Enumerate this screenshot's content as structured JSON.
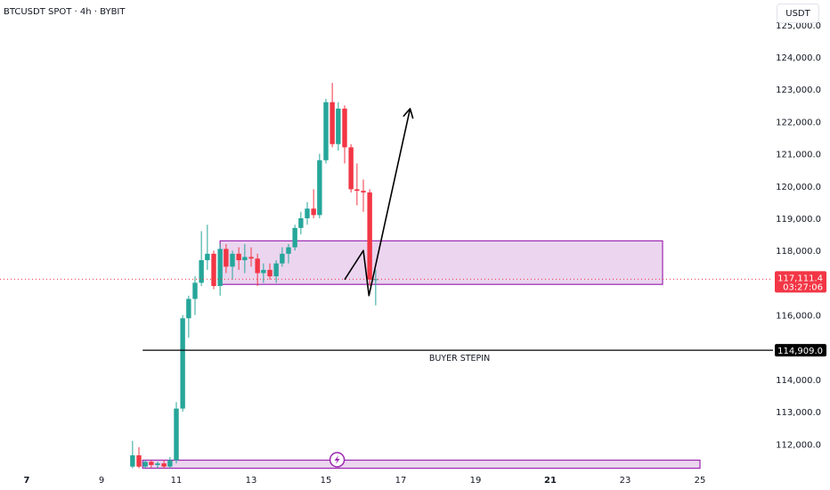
{
  "title": "BTCUSDT SPOT · 4h · BYBIT",
  "currency_button": "USDT",
  "price_tag": {
    "price": "117,111.4",
    "countdown": "03:27:06"
  },
  "level_tag": "114,909.0",
  "annotation": "BUYER STEPIN",
  "colors": {
    "up": "#26a69a",
    "down": "#f23645",
    "zone_fill": "#e1bee7",
    "zone_border": "#9c27b0",
    "line": "#000000",
    "price_tag_bg": "#f23645",
    "level_tag_bg": "#000000",
    "marker": "#9c27b0"
  },
  "marker_icon": "lightning-icon",
  "chart_data": {
    "type": "candlestick",
    "title": "BTCUSDT SPOT · 4h · BYBIT",
    "xlabel": "",
    "ylabel": "",
    "ylim": [
      111200,
      125200
    ],
    "y_ticks": [
      {
        "value": 112000,
        "label": "112,000.0"
      },
      {
        "value": 113000,
        "label": "113,000.0"
      },
      {
        "value": 114000,
        "label": "114,000.0"
      },
      {
        "value": 116000,
        "label": "116,000.0"
      },
      {
        "value": 117000,
        "label": "117,000.0"
      },
      {
        "value": 118000,
        "label": "118,000.0"
      },
      {
        "value": 119000,
        "label": "119,000.0"
      },
      {
        "value": 120000,
        "label": "120,000.0"
      },
      {
        "value": 121000,
        "label": "121,000.0"
      },
      {
        "value": 122000,
        "label": "122,000.0"
      },
      {
        "value": 123000,
        "label": "123,000.0"
      },
      {
        "value": 124000,
        "label": "124,000.0"
      },
      {
        "value": 125000,
        "label": "125,000.0"
      }
    ],
    "x_ticks": [
      {
        "day": 7,
        "label": "7",
        "bold": true
      },
      {
        "day": 9,
        "label": "9",
        "bold": false
      },
      {
        "day": 11,
        "label": "11",
        "bold": false
      },
      {
        "day": 13,
        "label": "13",
        "bold": false
      },
      {
        "day": 15,
        "label": "15",
        "bold": false
      },
      {
        "day": 17,
        "label": "17",
        "bold": false
      },
      {
        "day": 19,
        "label": "19",
        "bold": false
      },
      {
        "day": 21,
        "label": "21",
        "bold": true
      },
      {
        "day": 23,
        "label": "23",
        "bold": false
      },
      {
        "day": 25,
        "label": "25",
        "bold": false
      }
    ],
    "current_price": 117111.4,
    "level_line": {
      "value": 114909.0,
      "from_day": 10.1,
      "label": "BUYER STEPIN"
    },
    "zones": [
      {
        "from_day": 12.17,
        "to_day": 24.0,
        "low": 116950,
        "high": 118300
      },
      {
        "from_day": 10.1,
        "to_day": 25.0,
        "low": 111250,
        "high": 111500
      }
    ],
    "path_projection": [
      {
        "day": 15.5,
        "value": 117100
      },
      {
        "day": 16.0,
        "value": 118000
      },
      {
        "day": 16.15,
        "value": 116600
      },
      {
        "day": 17.25,
        "value": 122400
      }
    ],
    "marker_day": 15.3,
    "candles": [
      {
        "day": 9.83,
        "o": 111300,
        "h": 112100,
        "l": 111250,
        "c": 111650
      },
      {
        "day": 10.0,
        "o": 111650,
        "h": 111900,
        "l": 111250,
        "c": 111300
      },
      {
        "day": 10.17,
        "o": 111300,
        "h": 111500,
        "l": 111250,
        "c": 111450
      },
      {
        "day": 10.33,
        "o": 111450,
        "h": 111500,
        "l": 111250,
        "c": 111350
      },
      {
        "day": 10.5,
        "o": 111350,
        "h": 111450,
        "l": 111250,
        "c": 111400
      },
      {
        "day": 10.67,
        "o": 111400,
        "h": 111500,
        "l": 111250,
        "c": 111300
      },
      {
        "day": 10.83,
        "o": 111300,
        "h": 111600,
        "l": 111250,
        "c": 111500
      },
      {
        "day": 11.0,
        "o": 111500,
        "h": 113300,
        "l": 111400,
        "c": 113100
      },
      {
        "day": 11.17,
        "o": 113100,
        "h": 116000,
        "l": 113000,
        "c": 115900
      },
      {
        "day": 11.33,
        "o": 115900,
        "h": 116600,
        "l": 115300,
        "c": 116500
      },
      {
        "day": 11.5,
        "o": 116500,
        "h": 117200,
        "l": 116000,
        "c": 117000
      },
      {
        "day": 11.67,
        "o": 117000,
        "h": 118600,
        "l": 116900,
        "c": 117700
      },
      {
        "day": 11.83,
        "o": 117700,
        "h": 118800,
        "l": 117400,
        "c": 117900
      },
      {
        "day": 12.0,
        "o": 117900,
        "h": 118000,
        "l": 116800,
        "c": 116900
      },
      {
        "day": 12.17,
        "o": 116900,
        "h": 118200,
        "l": 116600,
        "c": 118050
      },
      {
        "day": 12.33,
        "o": 118050,
        "h": 118200,
        "l": 117300,
        "c": 117500
      },
      {
        "day": 12.5,
        "o": 117500,
        "h": 118000,
        "l": 117100,
        "c": 117900
      },
      {
        "day": 12.67,
        "o": 117900,
        "h": 118100,
        "l": 117400,
        "c": 117700
      },
      {
        "day": 12.83,
        "o": 117700,
        "h": 118200,
        "l": 117300,
        "c": 117800
      },
      {
        "day": 13.0,
        "o": 117800,
        "h": 118100,
        "l": 117500,
        "c": 117750
      },
      {
        "day": 13.17,
        "o": 117750,
        "h": 117900,
        "l": 116900,
        "c": 117300
      },
      {
        "day": 13.33,
        "o": 117300,
        "h": 117600,
        "l": 117000,
        "c": 117400
      },
      {
        "day": 13.5,
        "o": 117400,
        "h": 117600,
        "l": 117100,
        "c": 117200
      },
      {
        "day": 13.67,
        "o": 117200,
        "h": 117700,
        "l": 117000,
        "c": 117600
      },
      {
        "day": 13.83,
        "o": 117600,
        "h": 118100,
        "l": 117500,
        "c": 117900
      },
      {
        "day": 14.0,
        "o": 117900,
        "h": 118200,
        "l": 117600,
        "c": 118100
      },
      {
        "day": 14.17,
        "o": 118100,
        "h": 118800,
        "l": 118000,
        "c": 118700
      },
      {
        "day": 14.33,
        "o": 118700,
        "h": 119200,
        "l": 118500,
        "c": 119000
      },
      {
        "day": 14.5,
        "o": 119000,
        "h": 119500,
        "l": 118800,
        "c": 119300
      },
      {
        "day": 14.67,
        "o": 119300,
        "h": 119900,
        "l": 119000,
        "c": 119100
      },
      {
        "day": 14.83,
        "o": 119100,
        "h": 121000,
        "l": 119000,
        "c": 120800
      },
      {
        "day": 15.0,
        "o": 120800,
        "h": 122700,
        "l": 120700,
        "c": 122600
      },
      {
        "day": 15.17,
        "o": 122600,
        "h": 123200,
        "l": 121200,
        "c": 121300
      },
      {
        "day": 15.33,
        "o": 121300,
        "h": 122600,
        "l": 121100,
        "c": 122400
      },
      {
        "day": 15.5,
        "o": 122400,
        "h": 122500,
        "l": 120700,
        "c": 121200
      },
      {
        "day": 15.67,
        "o": 121200,
        "h": 121300,
        "l": 119800,
        "c": 119900
      },
      {
        "day": 15.83,
        "o": 119900,
        "h": 120700,
        "l": 119400,
        "c": 119850
      },
      {
        "day": 16.0,
        "o": 119850,
        "h": 120200,
        "l": 119200,
        "c": 119800
      },
      {
        "day": 16.17,
        "o": 119800,
        "h": 119900,
        "l": 116900,
        "c": 117100
      },
      {
        "day": 16.33,
        "o": 117100,
        "h": 117400,
        "l": 116300,
        "c": 117111.4
      }
    ]
  }
}
